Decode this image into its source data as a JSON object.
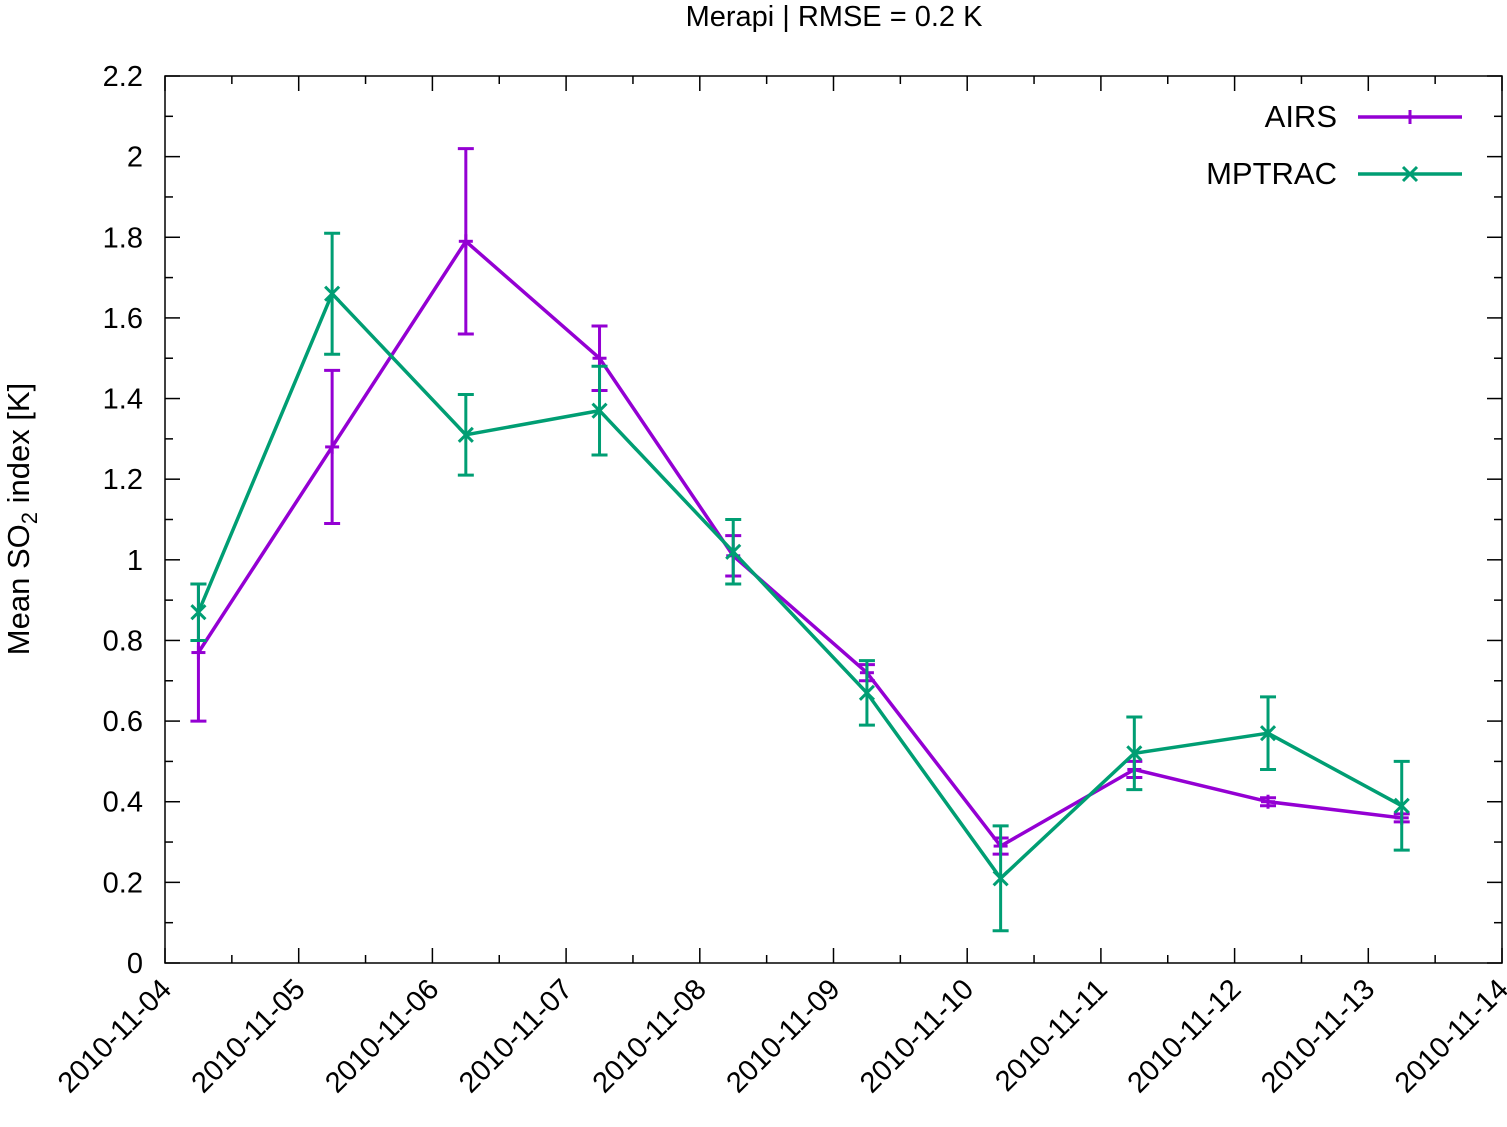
{
  "chart_data": {
    "type": "line",
    "title": "Merapi | RMSE = 0.2 K",
    "xlabel": "",
    "ylabel": {
      "prefix": "Mean SO",
      "subscript": "2",
      "suffix": " index [K]"
    },
    "x_ticks": [
      "2010-11-04",
      "2010-11-05",
      "2010-11-06",
      "2010-11-07",
      "2010-11-08",
      "2010-11-09",
      "2010-11-10",
      "2010-11-11",
      "2010-11-12",
      "2010-11-13",
      "2010-11-14"
    ],
    "xlim": [
      "2010-11-04 00:00",
      "2010-11-14 00:00"
    ],
    "ylim": [
      0,
      2.2
    ],
    "y_ticks": [
      "0",
      "0.2",
      "0.4",
      "0.6",
      "0.8",
      "1",
      "1.2",
      "1.4",
      "1.6",
      "1.8",
      "2",
      "2.2"
    ],
    "grid": false,
    "legend_position": "top-right",
    "x": [
      "2010-11-04 06:00",
      "2010-11-05 06:00",
      "2010-11-06 06:00",
      "2010-11-07 06:00",
      "2010-11-08 06:00",
      "2010-11-09 06:00",
      "2010-11-10 06:00",
      "2010-11-11 06:00",
      "2010-11-12 06:00",
      "2010-11-13 06:00"
    ],
    "series": [
      {
        "name": "AIRS",
        "color": "#9400d3",
        "marker": "plus",
        "values": [
          0.77,
          1.28,
          1.79,
          1.5,
          1.01,
          0.72,
          0.29,
          0.48,
          0.4,
          0.36
        ],
        "error": [
          0.17,
          0.19,
          0.23,
          0.08,
          0.05,
          0.02,
          0.02,
          0.02,
          0.01,
          0.01
        ]
      },
      {
        "name": "MPTRAC",
        "color": "#009e73",
        "marker": "cross",
        "values": [
          0.87,
          1.66,
          1.31,
          1.37,
          1.02,
          0.67,
          0.21,
          0.52,
          0.57,
          0.39
        ],
        "error": [
          0.07,
          0.15,
          0.1,
          0.11,
          0.08,
          0.08,
          0.13,
          0.09,
          0.09,
          0.11
        ]
      }
    ]
  }
}
